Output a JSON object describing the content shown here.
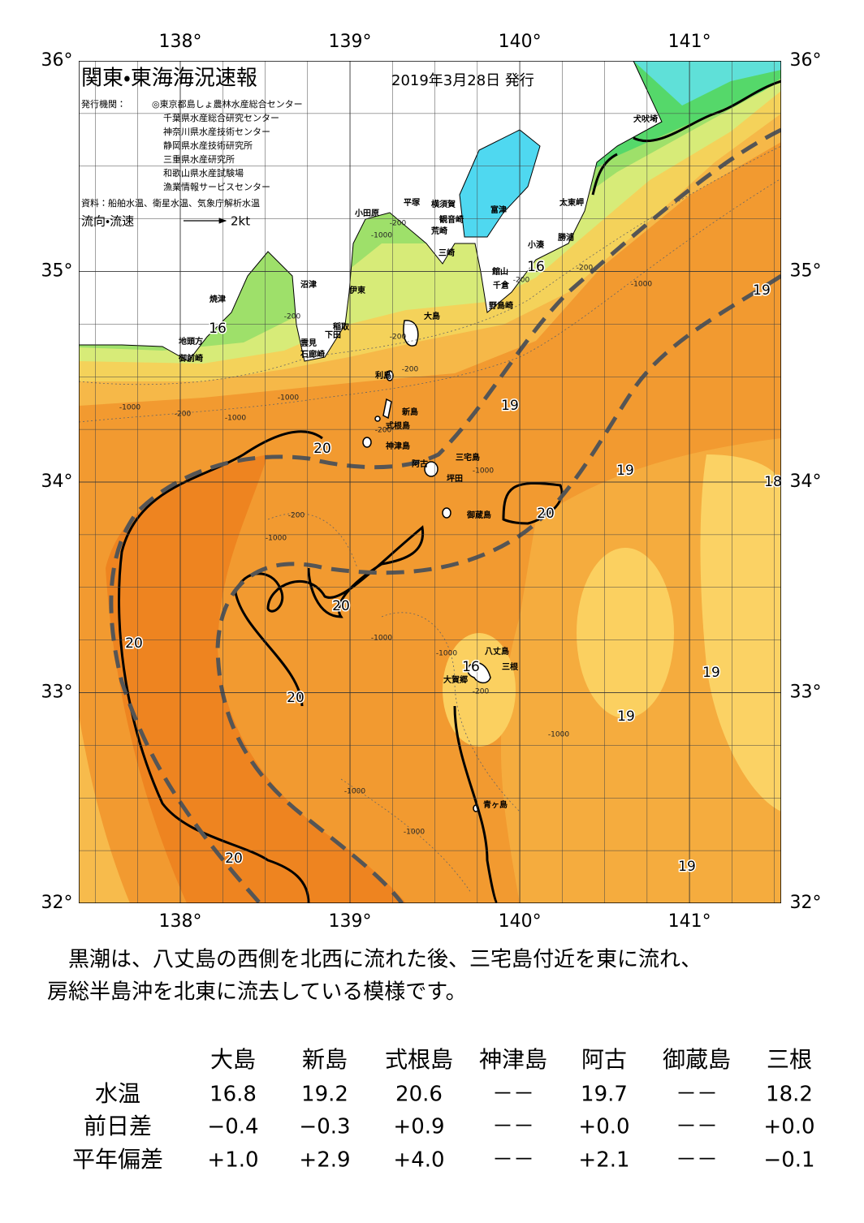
{
  "header": {
    "title": "関東・東海海況速報",
    "issued": "2019年3月28日 発行",
    "publisher_label": "発行機関：",
    "publishers": [
      "◎東京都島しょ農林水産総合センター",
      "千葉県水産総合研究センター",
      "神奈川県水産技術センター",
      "静岡県水産技術研究所",
      "三重県水産研究所",
      "和歌山県水産試験場",
      "漁業情報サービスセンター"
    ],
    "source": "資料：船舶水温、衛星水温、気象庁解析水温",
    "current_label": "流向・流速",
    "current_scale": "2kt"
  },
  "map": {
    "xlim": [
      137.402,
      141.54
    ],
    "ylim": [
      32,
      36
    ],
    "xticks": [
      {
        "value": 138,
        "label": "138°"
      },
      {
        "value": 139,
        "label": "139°"
      },
      {
        "value": 140,
        "label": "140°"
      },
      {
        "value": 141,
        "label": "141°"
      }
    ],
    "yticks": [
      {
        "value": 32,
        "label": "32°"
      },
      {
        "value": 33,
        "label": "33°"
      },
      {
        "value": 34,
        "label": "34°"
      },
      {
        "value": 35,
        "label": "35°"
      },
      {
        "value": 36,
        "label": "36°"
      }
    ],
    "place_names": [
      "犬吠埼",
      "太東岬",
      "勝浦",
      "小湊",
      "館山",
      "千倉",
      "野島崎",
      "富津",
      "横須賀",
      "観音崎",
      "荒崎",
      "三崎",
      "平塚",
      "小田原",
      "沼津",
      "伊東",
      "稲取",
      "下田",
      "雲見",
      "石廊崎",
      "焼津",
      "地頭方",
      "御前崎",
      "大島",
      "利島",
      "新島",
      "式根島",
      "神津島",
      "三宅島",
      "阿古",
      "坪田",
      "御蔵島",
      "八丈島",
      "三根",
      "大賀郷",
      "青ヶ島"
    ],
    "contour_labels": [
      16,
      19,
      19,
      20,
      19,
      18,
      20,
      20,
      20,
      16,
      19,
      20,
      19,
      20,
      19,
      16
    ],
    "depth_labels": [
      -200,
      -1000,
      -200,
      -200,
      -200,
      -1000,
      -1000,
      -200,
      -1000,
      -200,
      -1000,
      -200,
      -1000,
      -1000,
      -1000,
      -200,
      -1000,
      -1000,
      -1000,
      -200,
      -1000,
      -200
    ]
  },
  "summary": [
    "　黒潮は、八丈島の西側を北西に流れた後、三宅島付近を東に流れ、",
    "房総半島沖を北東に流去している模様です。"
  ],
  "table": {
    "columns": [
      "大島",
      "新島",
      "式根島",
      "神津島",
      "阿古",
      "御蔵島",
      "三根"
    ],
    "rows": [
      {
        "label": "水温",
        "cells": [
          16.8,
          19.2,
          20.6,
          "－－",
          19.7,
          "－－",
          18.2
        ]
      },
      {
        "label": "前日差",
        "cells": [
          "−0.4",
          "−0.3",
          "+0.9",
          "－－",
          "+0.0",
          "－－",
          "+0.0"
        ]
      },
      {
        "label": "平年偏差",
        "cells": [
          "+1.0",
          "+2.9",
          "+4.0",
          "－－",
          "+2.1",
          "－－",
          "−0.1"
        ]
      }
    ]
  }
}
